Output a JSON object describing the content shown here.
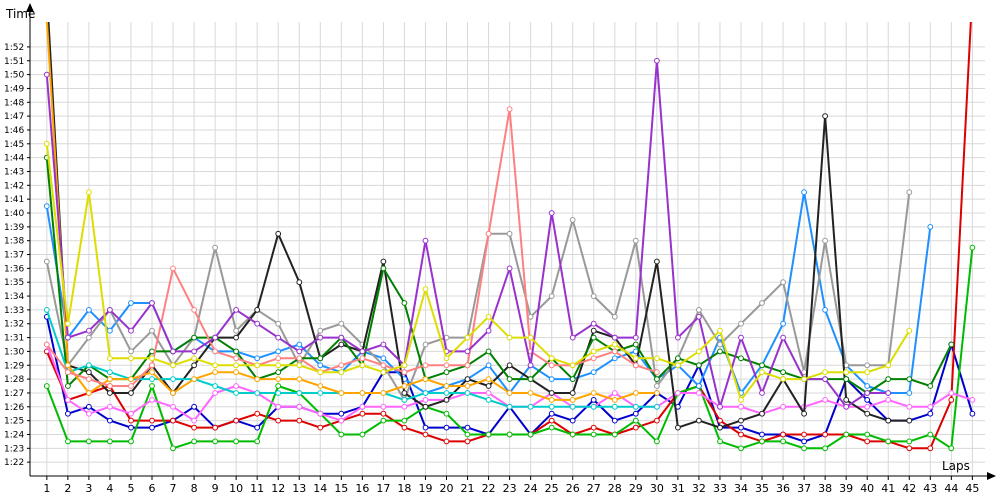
{
  "chart_data": {
    "type": "line",
    "xlabel": "Laps",
    "ylabel": "Time",
    "x": [
      1,
      2,
      3,
      4,
      5,
      6,
      7,
      8,
      9,
      10,
      11,
      12,
      13,
      14,
      15,
      16,
      17,
      18,
      19,
      20,
      21,
      22,
      23,
      24,
      25,
      26,
      27,
      28,
      29,
      30,
      31,
      32,
      33,
      34,
      35,
      36,
      37,
      38,
      39,
      40,
      41,
      42,
      43,
      44,
      45
    ],
    "x_ticks": [
      "1",
      "2",
      "3",
      "4",
      "5",
      "6",
      "7",
      "8",
      "9",
      "10",
      "11",
      "12",
      "13",
      "14",
      "15",
      "16",
      "17",
      "18",
      "19",
      "20",
      "21",
      "22",
      "23",
      "24",
      "25",
      "26",
      "27",
      "28",
      "29",
      "30",
      "31",
      "32",
      "33",
      "34",
      "35",
      "36",
      "37",
      "38",
      "39",
      "40",
      "41",
      "42",
      "43",
      "44",
      "45"
    ],
    "y_ticks": [
      "1:22",
      "1:23",
      "1:24",
      "1:25",
      "1:26",
      "1:27",
      "1:28",
      "1:29",
      "1:30",
      "1:31",
      "1:32",
      "1:33",
      "1:34",
      "1:35",
      "1:36",
      "1:37",
      "1:38",
      "1:39",
      "1:40",
      "1:41",
      "1:42",
      "1:43",
      "1:44",
      "1:45",
      "1:46",
      "1:47",
      "1:48",
      "1:49",
      "1:50",
      "1:51",
      "1:52"
    ],
    "y_tick_seconds": [
      82,
      83,
      84,
      85,
      86,
      87,
      88,
      89,
      90,
      91,
      92,
      93,
      94,
      95,
      96,
      97,
      98,
      99,
      100,
      101,
      102,
      103,
      104,
      105,
      106,
      107,
      108,
      109,
      110,
      111,
      112
    ],
    "ylim_seconds": [
      81,
      113.8
    ],
    "xlim": [
      0.2,
      45.6
    ],
    "grid": true,
    "series": [
      {
        "color": "#0000cc",
        "values": [
          92.5,
          85.5,
          86,
          85,
          84.5,
          84.5,
          85,
          86,
          84.5,
          85,
          84.5,
          86,
          86,
          85.5,
          85.5,
          86,
          88.5,
          88.5,
          84.5,
          84.5,
          84.5,
          84,
          86,
          84,
          85.5,
          85,
          86.5,
          85,
          85.5,
          87,
          86,
          89,
          84.5,
          84.5,
          84,
          84,
          83.5,
          84,
          88,
          86.5,
          85,
          85,
          85.5,
          90.5,
          85.5
        ]
      },
      {
        "color": "#dd0000",
        "values": [
          90,
          86.5,
          87,
          87.5,
          85,
          85,
          85,
          84.5,
          84.5,
          85,
          85.5,
          85,
          85,
          84.5,
          85,
          85.5,
          85.5,
          84.5,
          84,
          83.5,
          83.5,
          84,
          84,
          84,
          85,
          84,
          84.5,
          84,
          84.5,
          85,
          87,
          87.5,
          85,
          84,
          83.5,
          84,
          84,
          84,
          84,
          83.5,
          83.5,
          83,
          83,
          86.5,
          116
        ]
      },
      {
        "color": "#00bb00",
        "values": [
          87.5,
          83.5,
          83.5,
          83.5,
          83.5,
          87.5,
          83,
          83.5,
          83.5,
          83.5,
          83.5,
          87.5,
          87,
          85.5,
          84,
          84,
          85,
          85,
          86,
          85.5,
          84,
          84,
          84,
          84,
          84.5,
          84,
          84,
          84,
          85,
          83.5,
          87,
          87.5,
          83.5,
          83,
          83.5,
          83.5,
          83,
          83,
          84,
          84,
          83.5,
          83.5,
          84,
          83,
          97.5
        ]
      },
      {
        "color": "#ff66ff",
        "values": [
          90.5,
          86.5,
          85.5,
          86,
          85.5,
          86.5,
          86,
          85,
          87,
          87.5,
          87,
          86,
          86,
          85.5,
          85,
          86,
          86,
          86,
          86.5,
          86.5,
          87,
          87,
          86,
          86,
          87,
          86,
          86,
          87,
          86,
          86,
          87,
          87,
          86,
          86,
          85.5,
          86,
          86,
          86.5,
          86,
          86,
          86.5,
          86,
          86,
          87,
          86.5
        ]
      },
      {
        "color": "#1e90ff",
        "values": [
          100.5,
          91,
          93,
          91.5,
          93.5,
          93.5,
          90,
          91,
          90,
          90,
          89.5,
          90,
          90.5,
          89,
          88.5,
          90,
          89.5,
          88,
          87,
          87.5,
          88,
          89,
          87,
          89,
          88,
          88,
          88.5,
          89.5,
          90,
          88,
          89,
          87.5,
          91,
          87,
          89,
          92,
          101.5,
          93,
          89,
          87.5,
          87,
          87,
          99,
          null,
          null
        ]
      },
      {
        "color": "#999999",
        "values": [
          96.5,
          89,
          91,
          93,
          90,
          91.5,
          89,
          91,
          97.5,
          91.5,
          93,
          92,
          89,
          91.5,
          92,
          90.5,
          89,
          86.5,
          90.5,
          91,
          91,
          98.5,
          98.5,
          92.5,
          94,
          99.5,
          94,
          92.5,
          98,
          87.5,
          89.5,
          93,
          90.5,
          92,
          93.5,
          95,
          88.5,
          98,
          89,
          89,
          89,
          101.5,
          null,
          null,
          null
        ]
      },
      {
        "color": "#222222",
        "values": [
          116,
          89,
          88.5,
          87,
          87,
          89,
          87,
          89,
          91,
          91,
          93,
          98.5,
          95,
          89.5,
          90.5,
          90,
          96.5,
          87,
          86,
          86.5,
          88,
          87.5,
          89,
          88,
          87,
          87,
          91.5,
          91,
          89,
          96.5,
          84.5,
          85,
          84.5,
          85,
          85.5,
          88,
          85.5,
          107,
          86.5,
          85.5,
          85,
          85,
          null,
          null,
          null
        ]
      },
      {
        "color": "#008000",
        "values": [
          104,
          87.5,
          89,
          88,
          88,
          90,
          90,
          91,
          91,
          90,
          88,
          88.5,
          89.5,
          89.5,
          91,
          89,
          96,
          93.5,
          88,
          88.5,
          89,
          90,
          88,
          88,
          89.5,
          88,
          91,
          90,
          90.5,
          88,
          89.5,
          89,
          90,
          89.5,
          89,
          88.5,
          88,
          88,
          88,
          87,
          88,
          88,
          87.5,
          90.5,
          null
        ]
      },
      {
        "color": "#00cccc",
        "values": [
          93,
          88.5,
          89,
          88.5,
          88,
          88,
          88,
          88,
          87.5,
          87,
          87,
          87,
          87,
          87,
          87,
          87,
          87,
          86.5,
          87,
          87,
          87,
          86.5,
          86,
          86,
          86,
          86,
          86,
          86,
          86,
          86,
          null,
          null,
          null,
          null,
          null,
          null,
          null,
          null,
          null,
          null,
          null,
          null,
          null,
          null,
          null
        ]
      },
      {
        "color": "#ffa500",
        "values": [
          114,
          89,
          87,
          88,
          88,
          88.5,
          87,
          88,
          88.5,
          88.5,
          88,
          88,
          88,
          87.5,
          87,
          87,
          87,
          87.5,
          88,
          87.5,
          87.5,
          88,
          87,
          87,
          86.5,
          86.5,
          87,
          86.5,
          87,
          87,
          null,
          null,
          null,
          null,
          null,
          null,
          null,
          null,
          null,
          null,
          null,
          null,
          null,
          null,
          null
        ]
      },
      {
        "color": "#ff8080",
        "values": [
          90.5,
          88.5,
          88,
          87.5,
          87.5,
          89,
          96,
          93,
          90,
          89.5,
          89,
          89.5,
          89.5,
          88.5,
          89,
          89.5,
          89,
          88.5,
          89,
          89,
          89,
          98.5,
          107.5,
          90,
          89,
          89,
          89.5,
          90,
          89,
          88.5,
          null,
          null,
          null,
          null,
          null,
          null,
          null,
          null,
          null,
          null,
          null,
          null,
          null,
          null,
          null
        ]
      },
      {
        "color": "#9932cc",
        "values": [
          110,
          91,
          91.5,
          93,
          91.5,
          93.5,
          90,
          90,
          91,
          93,
          92,
          91,
          90,
          91,
          91,
          90,
          90.5,
          89,
          98,
          90,
          90,
          91.5,
          96,
          89,
          100,
          91,
          92,
          91,
          91,
          111,
          91,
          92.5,
          86,
          91,
          87,
          91,
          88,
          88,
          86,
          87,
          87,
          null,
          null,
          null,
          null
        ]
      },
      {
        "color": "#dddd00",
        "values": [
          105,
          92,
          101.5,
          89.5,
          89.5,
          89.5,
          89,
          89.5,
          89,
          89,
          89,
          89,
          89,
          88.5,
          88.5,
          89,
          88.5,
          89,
          94.5,
          89.5,
          91,
          92.5,
          91,
          91,
          89.5,
          89,
          90,
          90.5,
          89.5,
          89.5,
          89,
          90,
          91.5,
          86.5,
          88.5,
          88,
          88,
          88.5,
          88.5,
          88.5,
          89,
          91.5,
          null,
          null,
          null
        ]
      }
    ]
  }
}
